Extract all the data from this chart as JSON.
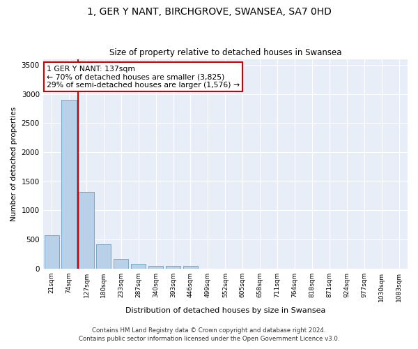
{
  "title": "1, GER Y NANT, BIRCHGROVE, SWANSEA, SA7 0HD",
  "subtitle": "Size of property relative to detached houses in Swansea",
  "xlabel": "Distribution of detached houses by size in Swansea",
  "ylabel": "Number of detached properties",
  "categories": [
    "21sqm",
    "74sqm",
    "127sqm",
    "180sqm",
    "233sqm",
    "287sqm",
    "340sqm",
    "393sqm",
    "446sqm",
    "499sqm",
    "552sqm",
    "605sqm",
    "658sqm",
    "711sqm",
    "764sqm",
    "818sqm",
    "871sqm",
    "924sqm",
    "977sqm",
    "1030sqm",
    "1083sqm"
  ],
  "values": [
    570,
    2900,
    1320,
    420,
    170,
    80,
    50,
    45,
    40,
    0,
    0,
    0,
    0,
    0,
    0,
    0,
    0,
    0,
    0,
    0,
    0
  ],
  "bar_color": "#b8d0e8",
  "bar_edge_color": "#6a9fc8",
  "annotation_line1": "1 GER Y NANT: 137sqm",
  "annotation_line2": "← 70% of detached houses are smaller (3,825)",
  "annotation_line3": "29% of semi-detached houses are larger (1,576) →",
  "vline_color": "#cc0000",
  "annotation_box_color": "#ffffff",
  "annotation_box_edge": "#cc0000",
  "ylim": [
    0,
    3600
  ],
  "yticks": [
    0,
    500,
    1000,
    1500,
    2000,
    2500,
    3000,
    3500
  ],
  "bg_color": "#e8eef8",
  "footer_line1": "Contains HM Land Registry data © Crown copyright and database right 2024.",
  "footer_line2": "Contains public sector information licensed under the Open Government Licence v3.0."
}
